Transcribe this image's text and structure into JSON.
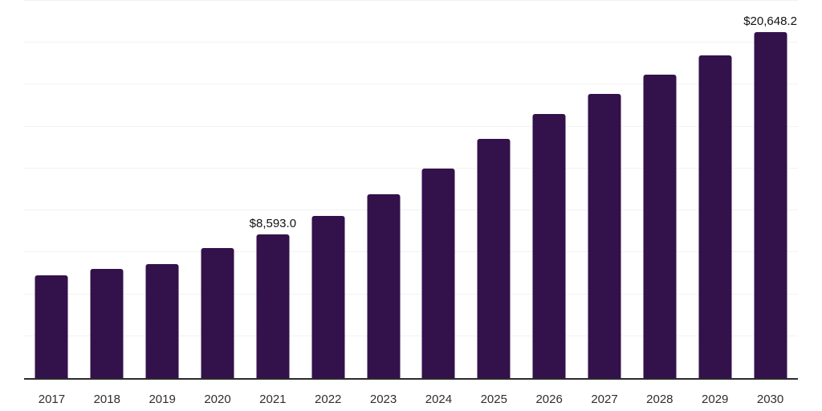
{
  "chart_data": {
    "type": "bar",
    "title": "",
    "xlabel": "",
    "ylabel": "",
    "categories": [
      "2017",
      "2018",
      "2019",
      "2020",
      "2021",
      "2022",
      "2023",
      "2024",
      "2025",
      "2026",
      "2027",
      "2028",
      "2029",
      "2030"
    ],
    "values": [
      6140,
      6490,
      6810,
      7750,
      8593.0,
      9670,
      10960,
      12480,
      14250,
      15740,
      16930,
      18080,
      19230,
      20648.2
    ],
    "data_labels": {
      "2021": "$8,593.0",
      "2030": "$20,648.2"
    },
    "ylim": [
      0,
      22500
    ],
    "gridline_step": 2500,
    "grid": "horizontal-only",
    "legend": "none",
    "bar_color": "#33114b",
    "grid_color": "#f2f2f2",
    "axis_color": "#2b2b2b",
    "value_label_color": "#111111",
    "tick_label_color": "#2e2e2e",
    "background_color": "#ffffff"
  }
}
